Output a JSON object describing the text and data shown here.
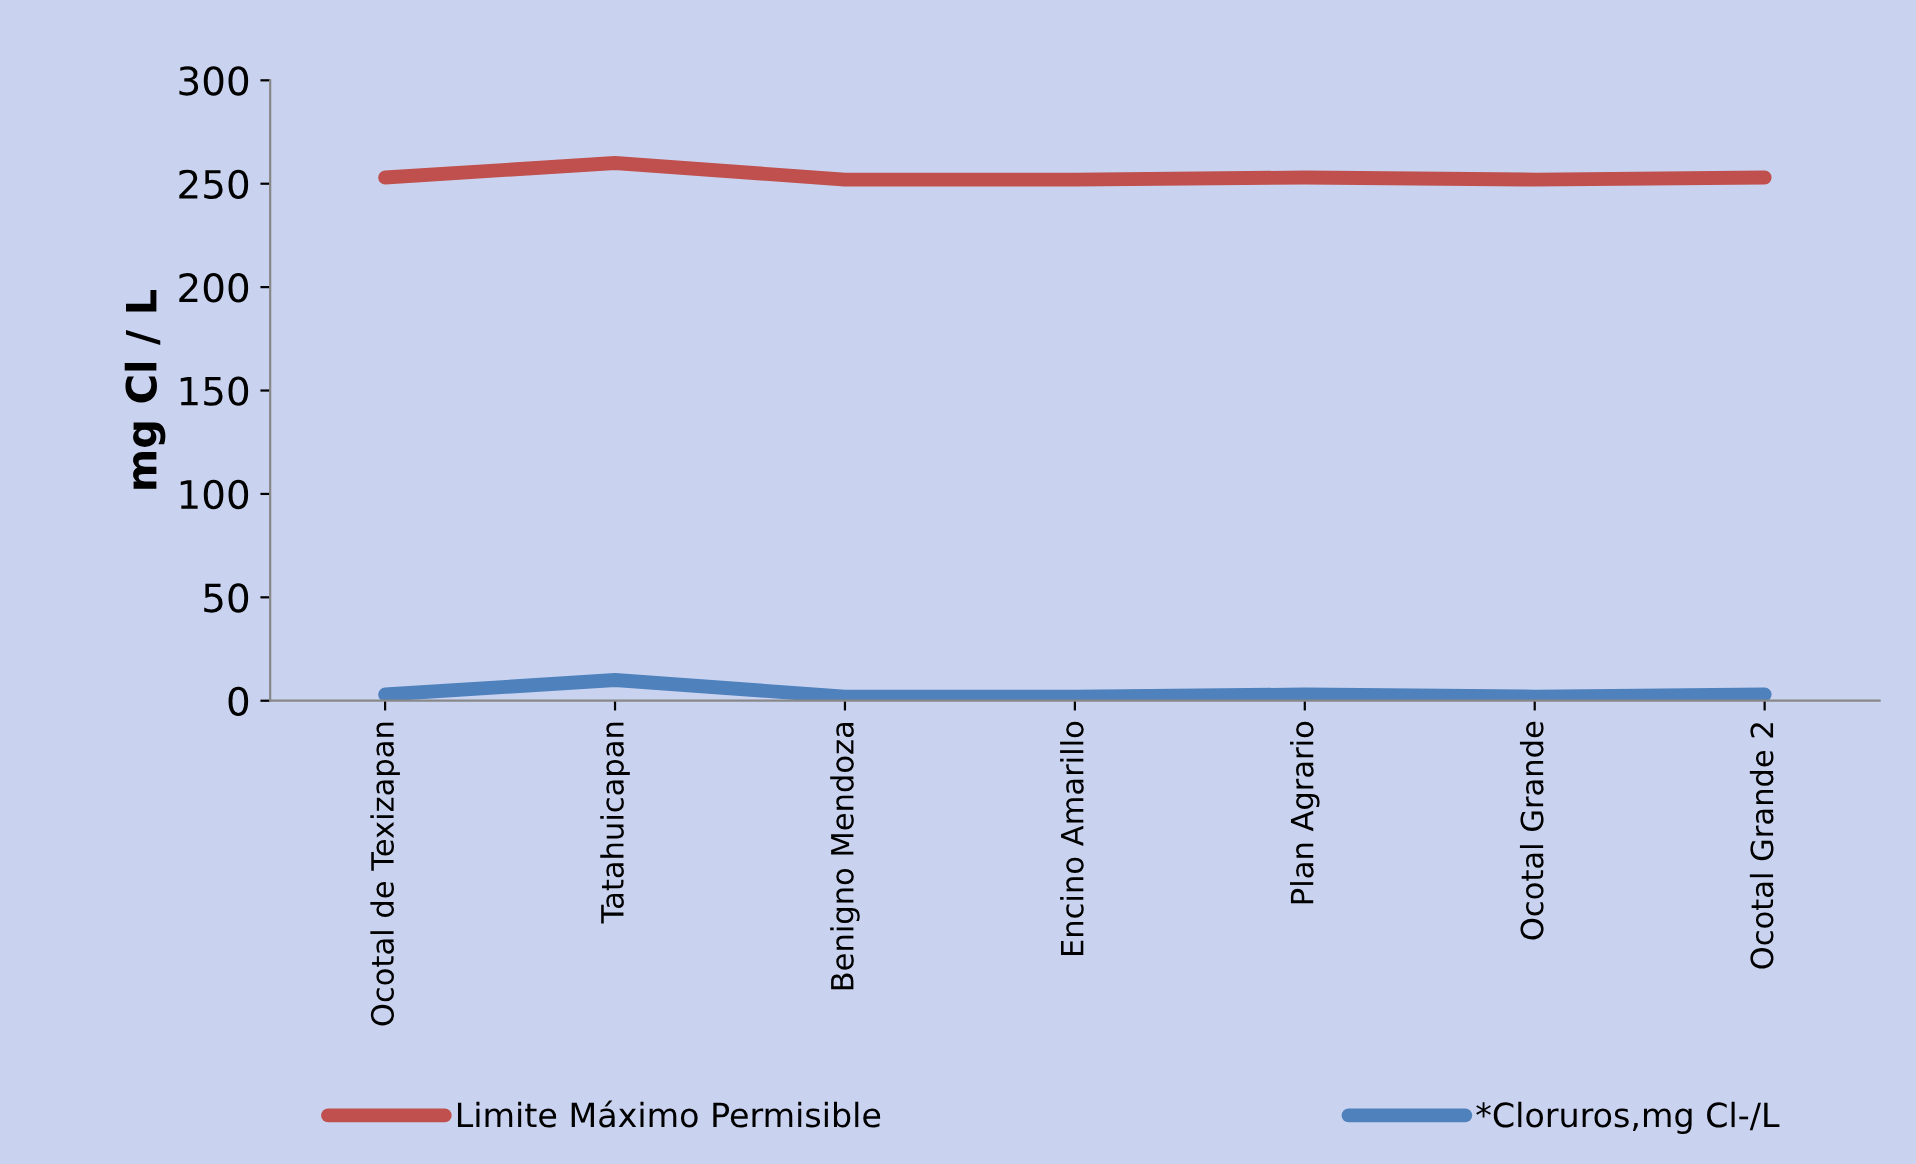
{
  "chart_data": {
    "type": "line",
    "ylabel": "mg Cl / L",
    "categories": [
      "Ocotal de Texizapan",
      "Tatahuicapan",
      "Benigno Mendoza",
      "Encino Amarillo",
      "Plan Agrario",
      "Ocotal Grande",
      "Ocotal Grande 2"
    ],
    "series": [
      {
        "name": "Limite Máximo Permisible",
        "color": "#c0504d",
        "values": [
          253,
          260,
          252,
          252,
          253,
          252,
          253
        ]
      },
      {
        "name": "*Cloruros,mg Cl-/L",
        "color": "#4f81bd",
        "values": [
          3,
          10,
          2,
          2,
          3,
          2,
          3
        ]
      }
    ],
    "ylim": [
      0,
      300
    ],
    "yticks": [
      0,
      50,
      100,
      150,
      200,
      250,
      300
    ],
    "grid": false,
    "legend": "bottom",
    "marker": "none",
    "line_style": "solid"
  }
}
